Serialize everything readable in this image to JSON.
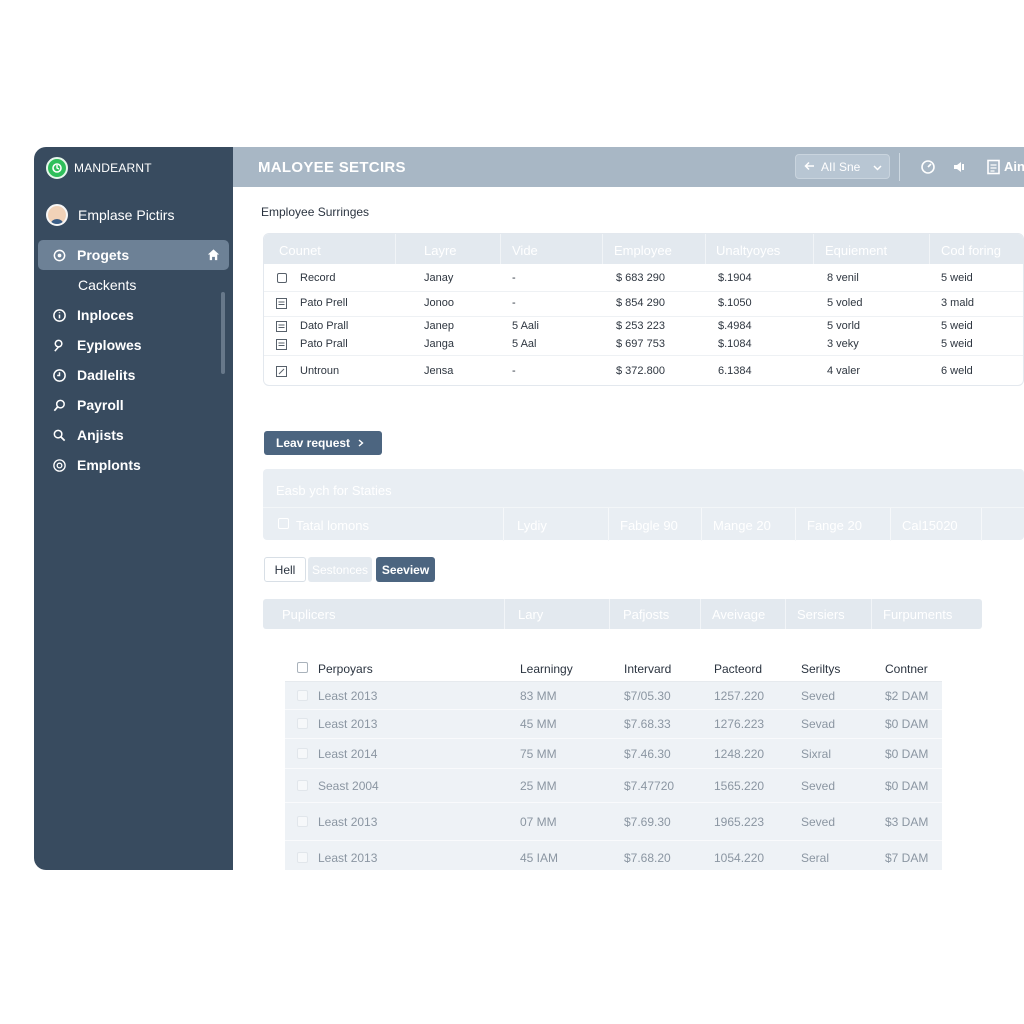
{
  "sidebar": {
    "brand": "MANDEARNT",
    "profile_name": "Emplase Pictirs",
    "items": [
      {
        "label": "Progets",
        "icon": "gear-icon",
        "active": true
      },
      {
        "label": "Cackents",
        "icon": ""
      },
      {
        "label": "Inploces",
        "icon": "info-icon"
      },
      {
        "label": "Eyplowes",
        "icon": "people-icon"
      },
      {
        "label": "Dadlelits",
        "icon": "clock-icon"
      },
      {
        "label": "Payroll",
        "icon": "search-icon"
      },
      {
        "label": "Anjists",
        "icon": "search-icon"
      },
      {
        "label": "Emplonts",
        "icon": "settings-icon"
      }
    ]
  },
  "header": {
    "title": "MALOYEE SETCIRS",
    "select_label": "AII Sne",
    "right_label": "Ain"
  },
  "main": {
    "section_title": "Employee Surringes",
    "table1": {
      "headers": [
        "Counet",
        "Layre",
        "Vide",
        "Employee",
        "Unaltyoyes",
        "Equiement",
        "Cod foring"
      ],
      "rows": [
        {
          "name": "Record",
          "c1": "Janay",
          "c2": "-",
          "c3": "$ 683 290",
          "c4": "$.1904",
          "c5": "8 venil",
          "c6": "5 weid"
        },
        {
          "name": "Pato Prell",
          "c1": "Jonoo",
          "c2": "-",
          "c3": "$ 854 290",
          "c4": "$.1050",
          "c5": "5 voled",
          "c6": "3 mald"
        },
        {
          "name": "Dato Prall",
          "c1": "Janep",
          "c2": "5 Aali",
          "c3": "$ 253 223",
          "c4": "$.4984",
          "c5": "5 vorld",
          "c6": "5 weid"
        },
        {
          "name": "Pato Prall",
          "c1": "Janga",
          "c2": "5 Aal",
          "c3": "$ 697 753",
          "c4": "$.1084",
          "c5": "3 veky",
          "c6": "5 weid"
        },
        {
          "name": "Untroun",
          "c1": "Jensa",
          "c2": "-",
          "c3": "$ 372.800",
          "c4": "6.1384",
          "c5": "4 valer",
          "c6": "6 weld"
        }
      ]
    },
    "leave_button": "Leav request",
    "panel2": {
      "title": "Easb ych for Staties",
      "cells": [
        "Tatal lomons",
        "Lydiy",
        "Fabgle 90",
        "Mange 20",
        "Fange 20",
        "Cal15020"
      ]
    },
    "segments": [
      "Hell",
      "Sestonces",
      "Seeview"
    ],
    "bar3": [
      "Puplicers",
      "Lary",
      "Pafjosts",
      "Aveivage",
      "Sersiers",
      "Furpuments"
    ],
    "table2": {
      "headers": [
        "Perpoyars",
        "Learningy",
        "Intervard",
        "Pacteord",
        "Seriltys",
        "Contner"
      ],
      "rows": [
        [
          "Least 2013",
          "83 MM",
          "$7/05.30",
          "1257.220",
          "Seved",
          "$2 DAM"
        ],
        [
          "Least 2013",
          "45 MM",
          "$7.68.33",
          "1276.223",
          "Sevad",
          "$0 DAM"
        ],
        [
          "Least 2014",
          "75 MM",
          "$7.46.30",
          "1248.220",
          "Sixral",
          "$0 DAM"
        ],
        [
          "Seast 2004",
          "25 MM",
          "$7.47720",
          "1565.220",
          "Seved",
          "$0 DAM"
        ],
        [
          "Least 2013",
          "07 MM",
          "$7.69.30",
          "1965.223",
          "Seved",
          "$3 DAM"
        ],
        [
          "Least 2013",
          "45 IAM",
          "$7.68.20",
          "1054.220",
          "Seral",
          "$7 DAM"
        ]
      ]
    }
  }
}
